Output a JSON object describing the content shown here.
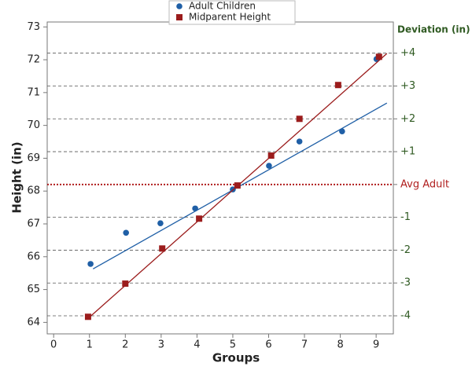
{
  "chart_data": {
    "type": "scatter",
    "xlabel": "Groups",
    "ylabel": "Height (in)",
    "y2label": "Deviation (in)",
    "xlim": [
      -0.18,
      9.48
    ],
    "xticks": [
      0,
      1,
      2,
      3,
      4,
      5,
      6,
      7,
      8,
      9
    ],
    "ylim": [
      63.65,
      73.15
    ],
    "yticks": [
      64,
      65,
      66,
      67,
      68,
      69,
      70,
      71,
      72,
      73
    ],
    "y2lim": [
      63.65,
      73.15
    ],
    "y2ticks": [
      {
        "value": 72.2,
        "label": "+4"
      },
      {
        "value": 71.2,
        "label": "+3"
      },
      {
        "value": 70.2,
        "label": "+2"
      },
      {
        "value": 69.2,
        "label": "+1"
      },
      {
        "value": 68.2,
        "label": "Avg Adult"
      },
      {
        "value": 67.2,
        "label": "-1"
      },
      {
        "value": 66.2,
        "label": "-2"
      },
      {
        "value": 65.2,
        "label": "-3"
      },
      {
        "value": 64.2,
        "label": "-4"
      }
    ],
    "y2tick_colors": [
      "#2f5a22",
      "#2f5a22",
      "#2f5a22",
      "#2f5a22",
      "#b01e1e",
      "#2f5a22",
      "#2f5a22",
      "#2f5a22",
      "#2f5a22"
    ],
    "grid": true,
    "legend": "top",
    "series": [
      {
        "name": "Adult Children",
        "color": "#1f5fa6",
        "marker": "circle",
        "x": [
          1.03,
          2.02,
          2.98,
          3.95,
          5.0,
          6.01,
          6.86,
          8.05,
          9.01
        ],
        "values": [
          65.78,
          66.73,
          67.02,
          67.47,
          68.05,
          68.77,
          69.51,
          69.82,
          72.02
        ],
        "trend_x": [
          1.1,
          9.3
        ],
        "trend_y": [
          65.63,
          70.68
        ]
      },
      {
        "name": "Midparent Height",
        "color": "#9b1c1c",
        "marker": "square",
        "x": [
          0.96,
          2.0,
          3.03,
          4.06,
          5.13,
          6.07,
          6.86,
          7.94,
          9.08
        ],
        "values": [
          64.17,
          65.18,
          66.25,
          67.16,
          68.17,
          69.08,
          70.2,
          71.23,
          72.09
        ],
        "trend_x": [
          0.96,
          9.3
        ],
        "trend_y": [
          64.12,
          72.19
        ]
      }
    ]
  }
}
